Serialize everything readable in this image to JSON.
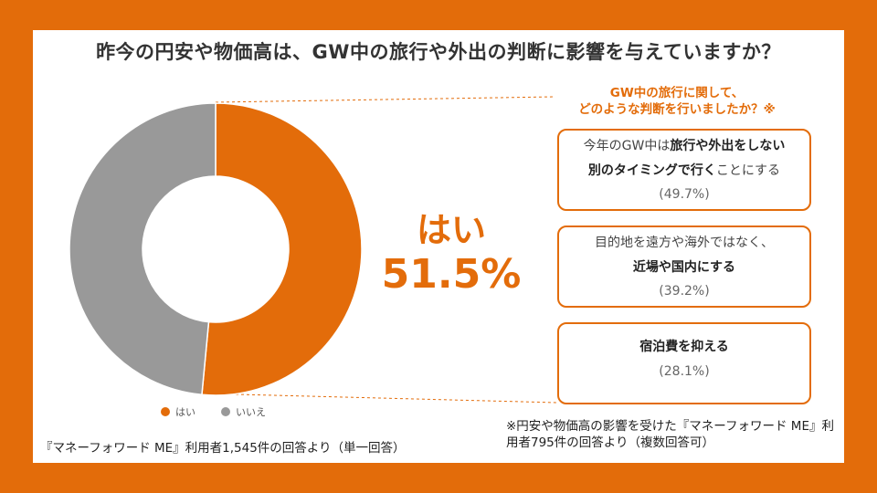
{
  "title": "昨今の円安や物価高は、GW中の旅行や外出の判断に影響を与えていますか？",
  "chart_data": {
    "type": "pie",
    "donut": true,
    "categories": [
      "はい",
      "いいえ"
    ],
    "values": [
      51.5,
      48.5
    ],
    "colors": [
      "#E36C0A",
      "#999999"
    ],
    "legend_placement": "bottom",
    "highlight": {
      "label": "はい",
      "value_text": "51.5%"
    }
  },
  "legend": [
    {
      "label": "はい",
      "color": "#E36C0A"
    },
    {
      "label": "いいえ",
      "color": "#999999"
    }
  ],
  "left_note": "『マネーフォワード ME』利用者1,545件の回答より（単一回答）",
  "breakdown": {
    "title_line1": "GW中の旅行に関して、",
    "title_line2": "どのような判断を行いましたか？※",
    "items": [
      {
        "line1_pre": "今年のGW中は",
        "line1_bold": "旅行や外出をしない",
        "line2_bold": "別のタイミングで行く",
        "line2_post": "ことにする",
        "percent": "(49.7%)"
      },
      {
        "line1": "目的地を遠方や海外ではなく、",
        "line2_bold": "近場や国内にする",
        "percent": "(39.2%)"
      },
      {
        "line1_bold": "宿泊費を抑える",
        "percent": "(28.1%)"
      }
    ]
  },
  "right_note": "※円安や物価高の影響を受けた『マネーフォワード ME』利用者795件の回答より（複数回答可）"
}
